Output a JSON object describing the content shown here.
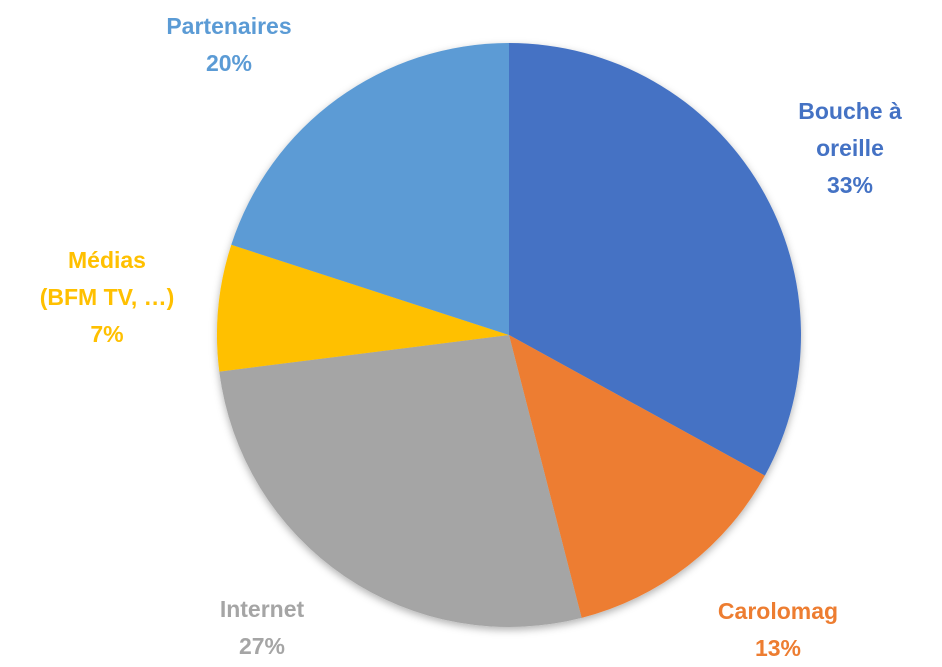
{
  "chart_data": {
    "type": "pie",
    "categories": [
      "Bouche à oreille",
      "Carolomag",
      "Internet",
      "Médias (BFM TV, …)",
      "Partenaires"
    ],
    "values": [
      33,
      13,
      27,
      7,
      20
    ],
    "value_labels": [
      "33%",
      "13%",
      "27%",
      "7%",
      "20%"
    ],
    "colors": [
      "#4472c4",
      "#ed7d31",
      "#a5a5a5",
      "#ffc000",
      "#5b9bd5"
    ]
  }
}
